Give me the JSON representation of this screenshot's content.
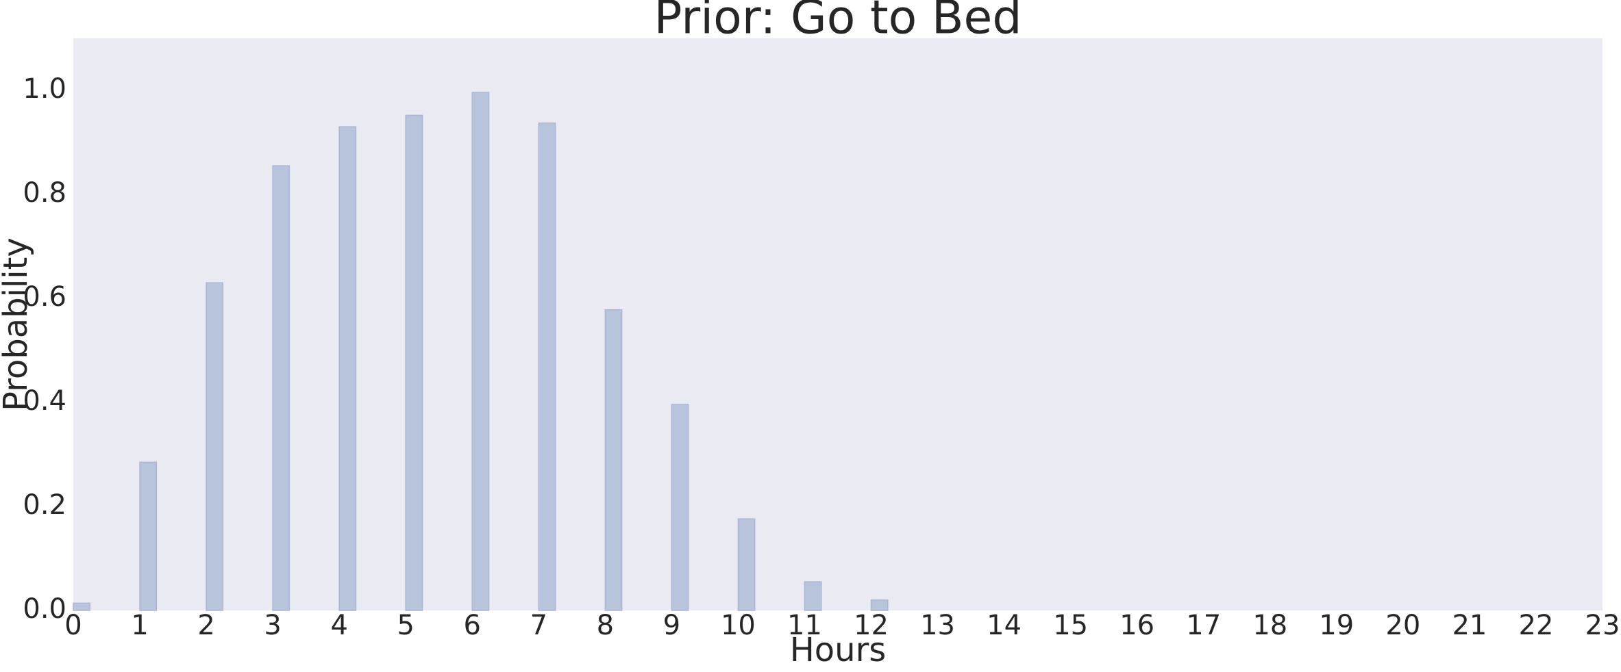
{
  "chart_data": {
    "type": "bar",
    "title": "Prior: Go to Bed",
    "x_label": "Hours",
    "y_label": "Probability",
    "x": [
      0,
      1,
      2,
      3,
      4,
      5,
      6,
      7,
      8,
      9,
      10,
      11,
      12
    ],
    "values": [
      0.014,
      0.285,
      0.63,
      0.855,
      0.93,
      0.952,
      0.996,
      0.937,
      0.578,
      0.396,
      0.176,
      0.055,
      0.02
    ],
    "color": "#b8c3dc",
    "xlim": [
      0,
      23
    ],
    "xticks": [
      0,
      1,
      2,
      3,
      4,
      5,
      6,
      7,
      8,
      9,
      10,
      11,
      12,
      13,
      14,
      15,
      16,
      17,
      18,
      19,
      20,
      21,
      22,
      23
    ],
    "ylim": [
      0,
      1.1
    ],
    "yticks": [
      {
        "value": 0,
        "label": "0.0"
      },
      0.2,
      0.4,
      0.6,
      0.8,
      {
        "value": 1,
        "label": "1.0"
      }
    ],
    "grid": false
  }
}
